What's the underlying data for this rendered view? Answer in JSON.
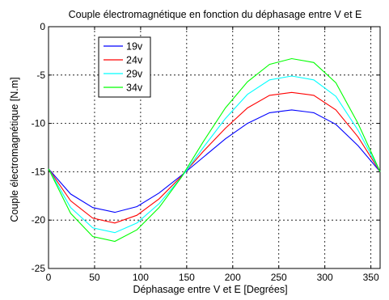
{
  "chart_data": {
    "type": "line",
    "title": "Couple électromagnétique en fonction du déphasage entre V et E",
    "xlabel": "Déphasage entre V et E [Degrées]",
    "ylabel": "Couple électromagnétique [N.m]",
    "xlim": [
      0,
      360
    ],
    "ylim": [
      -25,
      0
    ],
    "xticks": [
      "0",
      "50",
      "100",
      "150",
      "200",
      "250",
      "300",
      "350"
    ],
    "xtick_values": [
      0,
      50,
      100,
      150,
      200,
      250,
      300,
      350
    ],
    "yticks": [
      "0",
      "-5",
      "-10",
      "-15",
      "-20",
      "-25"
    ],
    "ytick_values": [
      0,
      -5,
      -10,
      -15,
      -20,
      -25
    ],
    "grid": true,
    "legend_position": "top-left",
    "x": [
      0,
      24,
      48,
      72,
      96,
      120,
      144,
      168,
      192,
      216,
      240,
      264,
      288,
      312,
      336,
      360
    ],
    "series": [
      {
        "name": "19v",
        "color": "#0000ff",
        "values": [
          -14.7,
          -17.3,
          -18.7,
          -19.2,
          -18.6,
          -17.2,
          -15.4,
          -13.5,
          -11.6,
          -10.0,
          -8.9,
          -8.6,
          -8.9,
          -10.1,
          -12.3,
          -15.0
        ]
      },
      {
        "name": "24v",
        "color": "#ff0000",
        "values": [
          -14.7,
          -18.0,
          -19.8,
          -20.3,
          -19.5,
          -17.8,
          -15.5,
          -12.9,
          -10.5,
          -8.4,
          -7.1,
          -6.8,
          -7.1,
          -8.6,
          -11.4,
          -15.0
        ]
      },
      {
        "name": "29v",
        "color": "#00ffff",
        "values": [
          -14.7,
          -18.7,
          -20.8,
          -21.3,
          -20.3,
          -18.3,
          -15.6,
          -12.5,
          -9.5,
          -7.0,
          -5.5,
          -5.1,
          -5.5,
          -7.2,
          -10.7,
          -15.0
        ]
      },
      {
        "name": "34v",
        "color": "#00ff00",
        "values": [
          -14.7,
          -19.3,
          -21.7,
          -22.2,
          -21.0,
          -18.7,
          -15.6,
          -11.9,
          -8.4,
          -5.7,
          -3.9,
          -3.3,
          -3.7,
          -5.8,
          -10.0,
          -15.0
        ]
      }
    ]
  }
}
